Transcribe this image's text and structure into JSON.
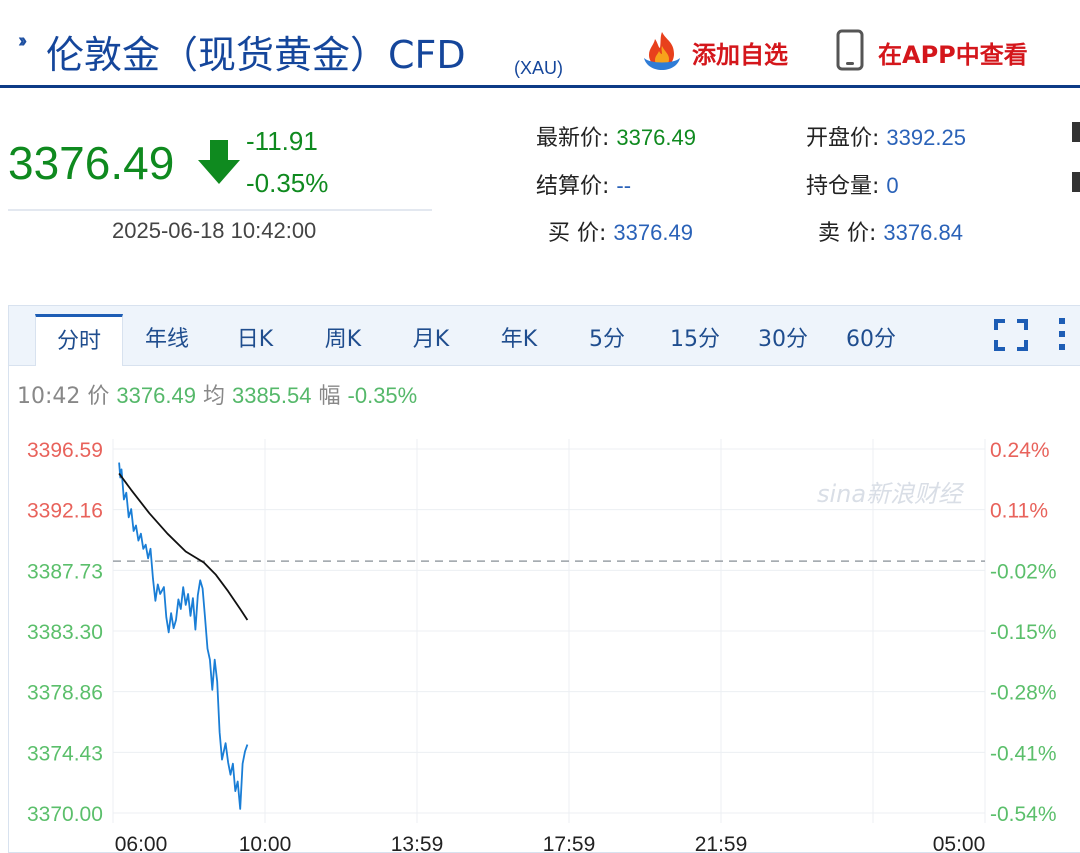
{
  "header": {
    "title": "伦敦金（现货黄金）CFD",
    "symbol": "(XAU)",
    "add_favorite_label": "添加自选",
    "app_label": "在APP中查看"
  },
  "quote": {
    "price": "3376.49",
    "change": "-11.91",
    "change_percent": "-0.35%",
    "datetime": "2025-06-18 10:42:00",
    "fields": [
      {
        "label": "最新价:",
        "value": "3376.49"
      },
      {
        "label": "开盘价:",
        "value": "3392.25"
      },
      {
        "label": "结算价:",
        "value": "--"
      },
      {
        "label": "持仓量:",
        "value": "0"
      },
      {
        "label": "买  价:",
        "value": "3376.49"
      },
      {
        "label": "卖  价:",
        "value": "3376.84"
      }
    ]
  },
  "tabs": [
    "分时",
    "年线",
    "日K",
    "周K",
    "月K",
    "年K",
    "5分",
    "15分",
    "30分",
    "60分"
  ],
  "active_tab": "分时",
  "status": {
    "time": "10:42",
    "price_label": "价",
    "price": "3376.49",
    "avg_label": "均",
    "avg": "3385.54",
    "range_label": "幅",
    "range": "-0.35%"
  },
  "watermark": "sina新浪财经",
  "colors": {
    "up": "#e8625b",
    "down": "#0f8a1f",
    "price_line": "#1a7ed6",
    "avg_line": "#111111",
    "brand": "#15469b",
    "accent": "#d4161b"
  },
  "chart_data": {
    "type": "line",
    "y_ticks": [
      "3396.59",
      "3392.16",
      "3387.73",
      "3383.30",
      "3378.86",
      "3374.43",
      "3370.00"
    ],
    "pct_ticks": [
      "0.24%",
      "0.11%",
      "-0.02%",
      "-0.15%",
      "-0.28%",
      "-0.41%",
      "-0.54%"
    ],
    "x_ticks": [
      "06:00",
      "10:00",
      "13:59",
      "17:59",
      "21:59",
      "05:00"
    ],
    "ylim": [
      3370.0,
      3396.59
    ],
    "reference_price": 3388.4,
    "x_range_minutes": [
      0,
      1440
    ],
    "series": [
      {
        "values": [
          [
            10,
            3395.6
          ],
          [
            12,
            3394.5
          ],
          [
            14,
            3395.1
          ],
          [
            18,
            3392.9
          ],
          [
            22,
            3393.4
          ],
          [
            26,
            3391.6
          ],
          [
            30,
            3392.2
          ],
          [
            34,
            3390.6
          ],
          [
            38,
            3391.0
          ],
          [
            42,
            3389.9
          ],
          [
            46,
            3390.4
          ],
          [
            50,
            3389.3
          ],
          [
            54,
            3389.6
          ],
          [
            58,
            3388.6
          ],
          [
            62,
            3389.3
          ],
          [
            66,
            3387.1
          ],
          [
            70,
            3385.5
          ],
          [
            74,
            3386.7
          ],
          [
            78,
            3386.0
          ],
          [
            84,
            3386.5
          ],
          [
            88,
            3384.3
          ],
          [
            92,
            3383.2
          ],
          [
            96,
            3384.6
          ],
          [
            100,
            3383.5
          ],
          [
            104,
            3384.1
          ],
          [
            108,
            3385.6
          ],
          [
            112,
            3384.9
          ],
          [
            116,
            3386.5
          ],
          [
            120,
            3385.2
          ],
          [
            124,
            3386.0
          ],
          [
            128,
            3384.4
          ],
          [
            132,
            3385.7
          ],
          [
            136,
            3383.4
          ],
          [
            140,
            3385.9
          ],
          [
            144,
            3387.0
          ],
          [
            148,
            3386.4
          ],
          [
            152,
            3384.3
          ],
          [
            156,
            3382.0
          ],
          [
            160,
            3381.2
          ],
          [
            164,
            3379.0
          ],
          [
            168,
            3381.2
          ],
          [
            172,
            3379.6
          ],
          [
            176,
            3375.9
          ],
          [
            180,
            3373.9
          ],
          [
            186,
            3375.1
          ],
          [
            190,
            3373.7
          ],
          [
            194,
            3372.8
          ],
          [
            198,
            3373.6
          ],
          [
            202,
            3371.6
          ],
          [
            206,
            3372.3
          ],
          [
            210,
            3370.3
          ],
          [
            214,
            3373.6
          ],
          [
            218,
            3374.5
          ],
          [
            222,
            3375.0
          ]
        ]
      },
      {
        "values": [
          [
            10,
            3394.8
          ],
          [
            30,
            3393.6
          ],
          [
            60,
            3391.9
          ],
          [
            90,
            3390.4
          ],
          [
            120,
            3389.1
          ],
          [
            150,
            3388.3
          ],
          [
            170,
            3387.4
          ],
          [
            190,
            3386.2
          ],
          [
            210,
            3384.9
          ],
          [
            222,
            3384.1
          ]
        ]
      }
    ]
  }
}
